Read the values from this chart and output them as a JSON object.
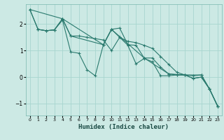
{
  "title": "",
  "xlabel": "Humidex (Indice chaleur)",
  "ylabel": "",
  "bg_color": "#cce9e4",
  "line_color": "#2a7a6e",
  "grid_color": "#a8d5cf",
  "xlim": [
    -0.5,
    23.5
  ],
  "ylim": [
    -1.45,
    2.75
  ],
  "yticks": [
    -1,
    0,
    1,
    2
  ],
  "xticks": [
    0,
    1,
    2,
    3,
    4,
    5,
    6,
    7,
    8,
    9,
    10,
    11,
    12,
    13,
    14,
    15,
    16,
    17,
    18,
    19,
    20,
    21,
    22,
    23
  ],
  "lines": [
    {
      "x": [
        0,
        1,
        2,
        3,
        4,
        5,
        6,
        7,
        8,
        9,
        10,
        11,
        12,
        13,
        14,
        15,
        16,
        17,
        18,
        19,
        20,
        21,
        22,
        23
      ],
      "y": [
        2.55,
        1.8,
        1.75,
        1.78,
        2.15,
        0.95,
        0.9,
        0.28,
        0.05,
        1.22,
        1.8,
        1.5,
        1.2,
        0.5,
        0.7,
        0.58,
        0.05,
        0.05,
        0.08,
        0.08,
        -0.05,
        0.0,
        -0.45,
        -1.1
      ]
    },
    {
      "x": [
        0,
        1,
        2,
        3,
        4,
        5,
        6,
        7,
        8,
        9,
        10,
        11,
        12,
        13,
        14,
        15,
        16,
        17,
        18,
        19,
        20,
        21,
        22,
        23
      ],
      "y": [
        2.55,
        1.8,
        1.75,
        1.78,
        2.2,
        1.55,
        1.55,
        1.5,
        1.45,
        1.4,
        1.0,
        1.5,
        1.35,
        1.3,
        1.2,
        1.08,
        0.78,
        0.48,
        0.18,
        0.08,
        -0.05,
        0.0,
        -0.45,
        -1.1
      ]
    },
    {
      "x": [
        1,
        2,
        3,
        4,
        5,
        9,
        10,
        11,
        12,
        13,
        14,
        15,
        16,
        17,
        18,
        19,
        20,
        21,
        22,
        23
      ],
      "y": [
        1.8,
        1.75,
        1.78,
        2.2,
        1.55,
        1.22,
        1.8,
        1.85,
        1.22,
        1.2,
        0.72,
        0.72,
        0.38,
        0.12,
        0.08,
        0.08,
        0.05,
        0.08,
        -0.45,
        -1.1
      ]
    },
    {
      "x": [
        0,
        4,
        9,
        10,
        14,
        17,
        19,
        21,
        22,
        23
      ],
      "y": [
        2.55,
        2.2,
        1.22,
        1.8,
        0.72,
        0.12,
        0.08,
        0.08,
        -0.45,
        -1.1
      ]
    }
  ]
}
